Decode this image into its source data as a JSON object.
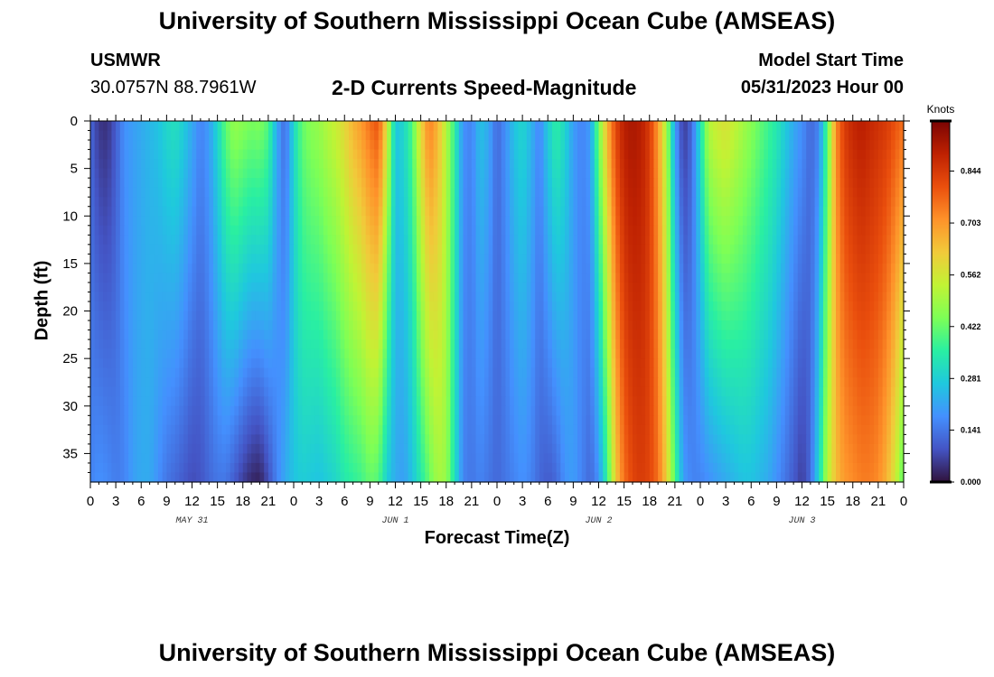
{
  "header": {
    "title": "University of Southern Mississippi Ocean Cube (AMSEAS)",
    "station": "USMWR",
    "coords": "30.0757N  88.7961W",
    "subtitle": "2-D Currents Speed-Magnitude",
    "start_label": "Model Start Time",
    "start_value": "05/31/2023 Hour 00"
  },
  "footer": {
    "title": "University of Southern Mississippi Ocean Cube (AMSEAS)"
  },
  "chart_data": {
    "type": "heatmap",
    "title": "2-D Currents Speed-Magnitude",
    "xlabel": "Forecast Time(Z)",
    "ylabel": "Depth (ft)",
    "x_range_hours": [
      0,
      96
    ],
    "y_range_ft": [
      0,
      38
    ],
    "x_tick_labels": [
      "0",
      "3",
      "6",
      "9",
      "12",
      "15",
      "18",
      "21",
      "0",
      "3",
      "6",
      "9",
      "12",
      "15",
      "18",
      "21",
      "0",
      "3",
      "6",
      "9",
      "12",
      "15",
      "18",
      "21",
      "0",
      "3",
      "6",
      "9",
      "12",
      "15",
      "18",
      "21",
      "0"
    ],
    "y_ticks": [
      0,
      5,
      10,
      15,
      20,
      25,
      30,
      35
    ],
    "day_labels": [
      {
        "label": "MAY 31",
        "hour": 12
      },
      {
        "label": "JUN 1",
        "hour": 36
      },
      {
        "label": "JUN 2",
        "hour": 60
      },
      {
        "label": "JUN 3",
        "hour": 84
      }
    ],
    "colorbar": {
      "title": "Knots",
      "ticks": [
        "0.844",
        "0.703",
        "0.562",
        "0.422",
        "0.281",
        "0.141",
        "0.000"
      ],
      "range": [
        0,
        0.98
      ],
      "colors": [
        "#30123b",
        "#4454c4",
        "#4490fe",
        "#1fc8de",
        "#29efa2",
        "#7dff56",
        "#c1f334",
        "#f1ca3a",
        "#fe922a",
        "#ea4f0d",
        "#be2102",
        "#7a0403"
      ]
    },
    "profile_hours": [
      0,
      1,
      2,
      3,
      4,
      5,
      6,
      7,
      8,
      9,
      10,
      11,
      12,
      13,
      14,
      15,
      16,
      17,
      18,
      19,
      20,
      21,
      22,
      23,
      24,
      25,
      26,
      27,
      28,
      29,
      30,
      31,
      32,
      33,
      34,
      35,
      36,
      37,
      38,
      39,
      40,
      41,
      42,
      43,
      44,
      45,
      46,
      47,
      48,
      49,
      50,
      51,
      52,
      53,
      54,
      55,
      56,
      57,
      58,
      59,
      60,
      61,
      62,
      63,
      64,
      65,
      66,
      67,
      68,
      69,
      70,
      71,
      72,
      73,
      74,
      75,
      76,
      77,
      78,
      79,
      80,
      81,
      82,
      83,
      84,
      85,
      86,
      87,
      88,
      89,
      90,
      91,
      92,
      93,
      94,
      95,
      96
    ],
    "surface_speed": [
      0.12,
      0.05,
      0.04,
      0.1,
      0.18,
      0.2,
      0.22,
      0.24,
      0.26,
      0.3,
      0.32,
      0.28,
      0.22,
      0.16,
      0.2,
      0.3,
      0.42,
      0.48,
      0.46,
      0.44,
      0.45,
      0.4,
      0.22,
      0.12,
      0.3,
      0.42,
      0.46,
      0.48,
      0.52,
      0.55,
      0.6,
      0.66,
      0.7,
      0.76,
      0.8,
      0.58,
      0.26,
      0.3,
      0.4,
      0.6,
      0.74,
      0.66,
      0.52,
      0.36,
      0.18,
      0.16,
      0.26,
      0.22,
      0.12,
      0.18,
      0.26,
      0.3,
      0.24,
      0.16,
      0.28,
      0.36,
      0.3,
      0.2,
      0.16,
      0.2,
      0.44,
      0.66,
      0.82,
      0.9,
      0.92,
      0.9,
      0.84,
      0.7,
      0.5,
      0.2,
      0.05,
      0.12,
      0.32,
      0.52,
      0.56,
      0.58,
      0.54,
      0.5,
      0.46,
      0.42,
      0.38,
      0.34,
      0.28,
      0.22,
      0.18,
      0.12,
      0.16,
      0.4,
      0.72,
      0.84,
      0.88,
      0.9,
      0.88,
      0.86,
      0.84,
      0.8,
      0.76
    ],
    "bottom_speed": [
      0.16,
      0.18,
      0.17,
      0.15,
      0.16,
      0.2,
      0.22,
      0.22,
      0.18,
      0.14,
      0.12,
      0.1,
      0.08,
      0.09,
      0.12,
      0.14,
      0.14,
      0.1,
      0.06,
      0.03,
      0.02,
      0.08,
      0.16,
      0.22,
      0.26,
      0.28,
      0.27,
      0.26,
      0.28,
      0.3,
      0.34,
      0.36,
      0.38,
      0.42,
      0.4,
      0.28,
      0.22,
      0.2,
      0.26,
      0.34,
      0.42,
      0.5,
      0.48,
      0.32,
      0.16,
      0.14,
      0.16,
      0.14,
      0.12,
      0.14,
      0.16,
      0.18,
      0.16,
      0.12,
      0.1,
      0.12,
      0.18,
      0.2,
      0.16,
      0.12,
      0.18,
      0.36,
      0.62,
      0.76,
      0.82,
      0.84,
      0.82,
      0.76,
      0.62,
      0.4,
      0.2,
      0.16,
      0.16,
      0.18,
      0.2,
      0.22,
      0.24,
      0.26,
      0.26,
      0.24,
      0.22,
      0.18,
      0.14,
      0.1,
      0.06,
      0.12,
      0.3,
      0.52,
      0.64,
      0.7,
      0.72,
      0.74,
      0.74,
      0.72,
      0.66,
      0.56,
      0.4
    ]
  }
}
